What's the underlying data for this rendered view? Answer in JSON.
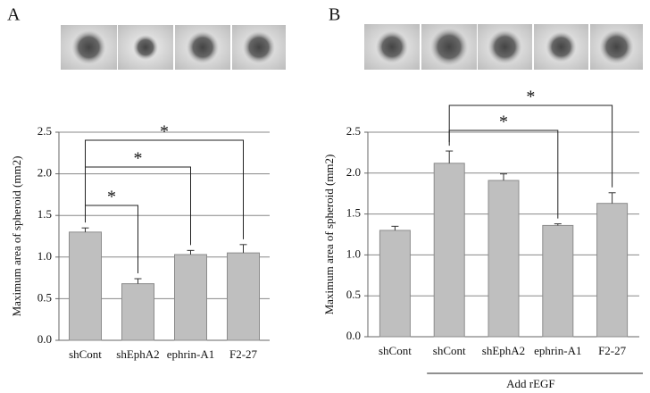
{
  "chart_data": [
    {
      "type": "bar",
      "panel_label": "A",
      "ylabel": "Maximum area of spheroid  (mm2)",
      "categories": [
        "shCont",
        "shEphA2",
        "ephrin-A1",
        "F2-27"
      ],
      "values": [
        1.3,
        0.68,
        1.03,
        1.05
      ],
      "errors": [
        0.05,
        0.06,
        0.05,
        0.1
      ],
      "color": "#bfbfbf",
      "ylim": [
        0,
        2.5
      ],
      "yticks": [
        {
          "value": 0,
          "label": "0.0"
        },
        0.5,
        {
          "value": 1,
          "label": "1.0"
        },
        1.5,
        {
          "value": 2,
          "label": "2.0"
        },
        2.5
      ],
      "grid": true,
      "annotations": [
        "*",
        "*",
        "*"
      ]
    },
    {
      "type": "bar",
      "panel_label": "B",
      "ylabel": "Maximum area of spheroid  (mm2)",
      "categories": [
        "shCont",
        "shCont",
        "shEphA2",
        "ephrin-A1",
        "F2-27"
      ],
      "values": [
        1.3,
        2.12,
        1.91,
        1.36,
        1.63
      ],
      "errors": [
        0.05,
        0.15,
        0.08,
        0.02,
        0.13
      ],
      "color": "#bfbfbf",
      "ylim": [
        0,
        2.5
      ],
      "yticks": [
        {
          "value": 0,
          "label": "0.0"
        },
        0.5,
        {
          "value": 1,
          "label": "1.0"
        },
        1.5,
        {
          "value": 2,
          "label": "2.0"
        },
        2.5
      ],
      "grid": true,
      "annotations": [
        "*",
        "*"
      ],
      "group_label": "Add rEGF"
    }
  ]
}
